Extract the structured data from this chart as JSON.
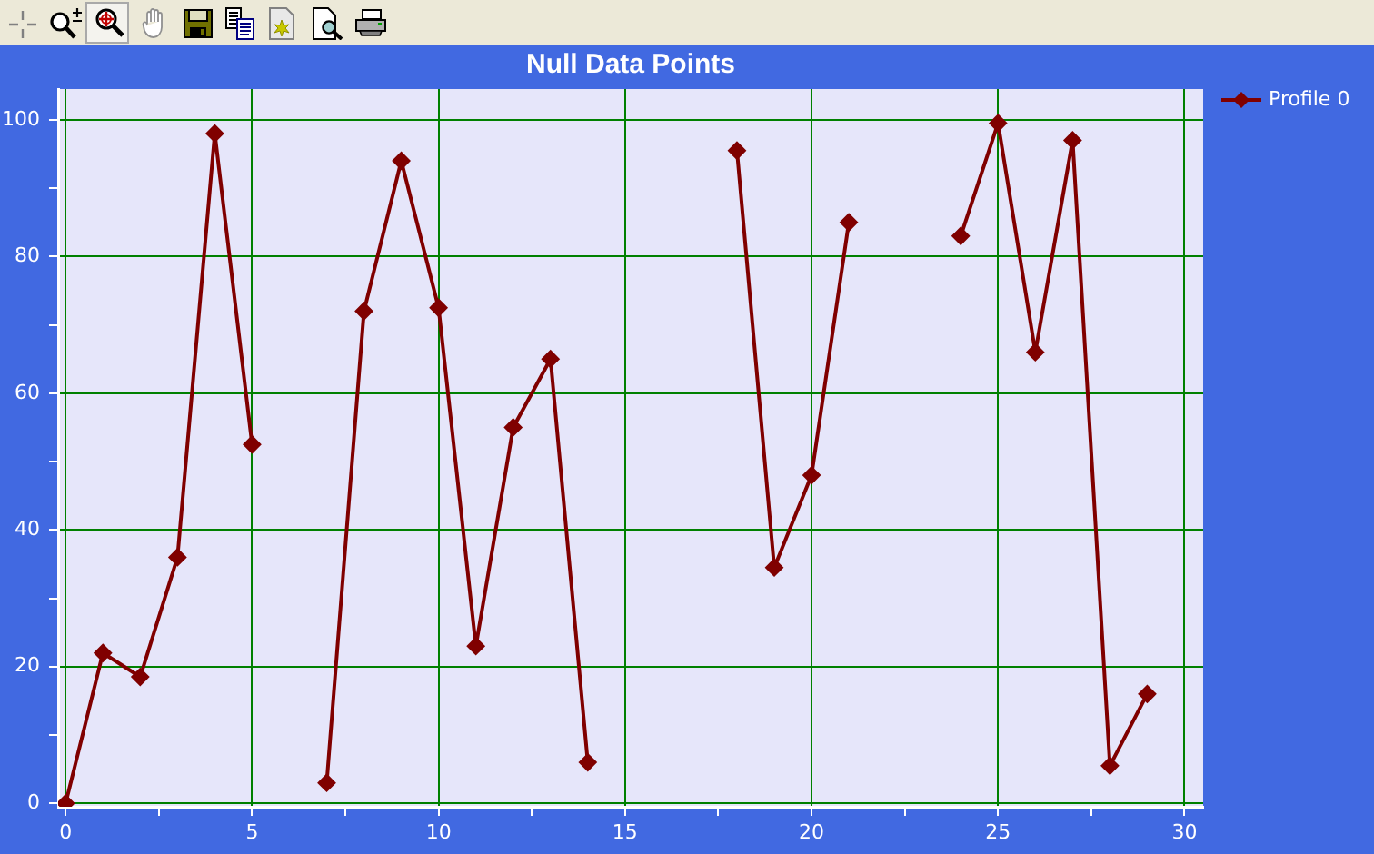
{
  "chart_data": {
    "type": "line",
    "title": "Null Data Points",
    "x": [
      0,
      1,
      2,
      3,
      4,
      5,
      6,
      7,
      8,
      9,
      10,
      11,
      12,
      13,
      14,
      15,
      16,
      17,
      18,
      19,
      20,
      21,
      22,
      23,
      24,
      25,
      26,
      27,
      28,
      29
    ],
    "series": [
      {
        "name": "Profile 0",
        "color": "#800000",
        "values": [
          0,
          22,
          18.5,
          36,
          98,
          52.5,
          null,
          3,
          72,
          94,
          72.5,
          23,
          55,
          65,
          6,
          null,
          null,
          null,
          95.5,
          34.5,
          48,
          85,
          null,
          null,
          83,
          99.5,
          66,
          97,
          5.5,
          16
        ]
      }
    ],
    "xlim": [
      -0.2,
      30.5
    ],
    "ylim": [
      -0.5,
      104.5
    ],
    "xticks": [
      0,
      {
        "value": 2.5,
        "label": null
      },
      5,
      {
        "value": 7.5,
        "label": null
      },
      10,
      {
        "value": 12.5,
        "label": null
      },
      15,
      {
        "value": 17.5,
        "label": null
      },
      20,
      {
        "value": 22.5,
        "label": null
      },
      25,
      {
        "value": 27.5,
        "label": null
      },
      30
    ],
    "yticks": [
      0,
      {
        "value": 10,
        "label": null
      },
      20,
      {
        "value": 30,
        "label": null
      },
      40,
      {
        "value": 50,
        "label": null
      },
      60,
      {
        "value": 70,
        "label": null
      },
      80,
      {
        "value": 90,
        "label": null
      },
      100
    ],
    "grid": true,
    "legend": "top right",
    "marker": "diamond",
    "line_style": "solid"
  }
}
